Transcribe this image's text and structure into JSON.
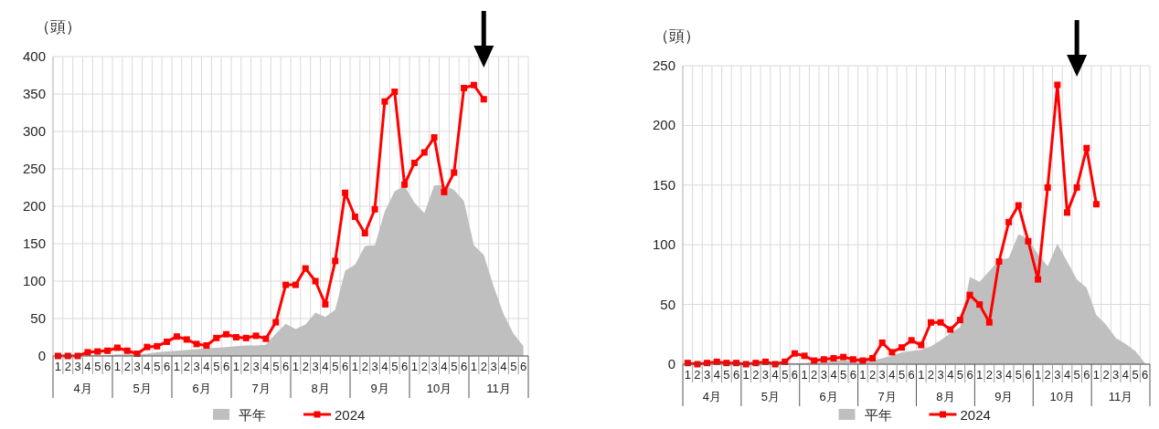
{
  "chart_data": [
    {
      "type": "line",
      "ylabel": "（頭）",
      "ylim": [
        0,
        400
      ],
      "yticks": [
        0,
        50,
        100,
        150,
        200,
        250,
        300,
        350,
        400
      ],
      "grid": true,
      "legend": "bottom",
      "categories": [
        "1",
        "2",
        "3",
        "4",
        "5",
        "6",
        "1",
        "2",
        "3",
        "4",
        "5",
        "6",
        "1",
        "2",
        "3",
        "4",
        "5",
        "6",
        "1",
        "2",
        "3",
        "4",
        "5",
        "6",
        "1",
        "2",
        "3",
        "4",
        "5",
        "6",
        "1",
        "2",
        "3",
        "4",
        "5",
        "6",
        "1",
        "2",
        "3",
        "4",
        "5",
        "6",
        "1",
        "2",
        "3",
        "4",
        "5",
        "6"
      ],
      "annotations": [
        "4月",
        "5月",
        "6月",
        "7月",
        "8月",
        "9月",
        "10月",
        "11月"
      ],
      "series": [
        {
          "name": "平年",
          "type": "area",
          "color": "#bfbfbf",
          "values": [
            0,
            0,
            0,
            1,
            1,
            1,
            2,
            2,
            2,
            3,
            5,
            6,
            7,
            8,
            9,
            10,
            11,
            12,
            13,
            14,
            14,
            15,
            30,
            43,
            36,
            42,
            58,
            52,
            62,
            114,
            122,
            147,
            148,
            193,
            220,
            227,
            205,
            191,
            228,
            228,
            222,
            207,
            148,
            135,
            93,
            56,
            30,
            13
          ]
        },
        {
          "name": "2024",
          "marker": "square",
          "color": "#ff0000",
          "values": [
            0,
            0,
            0,
            5,
            6,
            7,
            11,
            7,
            3,
            12,
            13,
            19,
            26,
            22,
            16,
            14,
            24,
            29,
            25,
            24,
            27,
            23,
            45,
            95,
            95,
            117,
            100,
            69,
            127,
            218,
            186,
            164,
            196,
            340,
            353,
            229,
            258,
            272,
            292,
            219,
            245,
            358,
            362,
            343,
            null,
            null,
            null,
            null
          ]
        }
      ]
    },
    {
      "type": "line",
      "ylabel": "（頭）",
      "ylim": [
        0,
        250
      ],
      "yticks": [
        0,
        50,
        100,
        150,
        200,
        250
      ],
      "grid": true,
      "legend": "bottom",
      "categories": [
        "1",
        "2",
        "3",
        "4",
        "5",
        "6",
        "1",
        "2",
        "3",
        "4",
        "5",
        "6",
        "1",
        "2",
        "3",
        "4",
        "5",
        "6",
        "1",
        "2",
        "3",
        "4",
        "5",
        "6",
        "1",
        "2",
        "3",
        "4",
        "5",
        "6",
        "1",
        "2",
        "3",
        "4",
        "5",
        "6",
        "1",
        "2",
        "3",
        "4",
        "5",
        "6",
        "1",
        "2",
        "3",
        "4",
        "5",
        "6"
      ],
      "annotations": [
        "4月",
        "5月",
        "6月",
        "7月",
        "8月",
        "9月",
        "10月",
        "11月"
      ],
      "series": [
        {
          "name": "平年",
          "type": "area",
          "color": "#bfbfbf",
          "values": [
            0,
            0,
            0,
            0,
            0,
            0,
            0,
            0,
            0,
            0,
            1,
            1,
            1,
            2,
            2,
            3,
            3,
            3,
            3,
            3,
            5,
            7,
            10,
            11,
            12,
            15,
            20,
            26,
            31,
            73,
            69,
            78,
            87,
            89,
            109,
            105,
            92,
            82,
            101,
            86,
            71,
            64,
            41,
            33,
            22,
            17,
            11,
            1
          ]
        },
        {
          "name": "2024",
          "marker": "square",
          "color": "#ff0000",
          "values": [
            1,
            0,
            1,
            2,
            1,
            1,
            0,
            1,
            2,
            0,
            2,
            9,
            7,
            3,
            4,
            5,
            6,
            4,
            3,
            5,
            18,
            10,
            14,
            20,
            16,
            35,
            35,
            29,
            37,
            58,
            50,
            35,
            86,
            119,
            133,
            103,
            71,
            148,
            234,
            127,
            148,
            181,
            134,
            null,
            null,
            null,
            null,
            null
          ]
        }
      ]
    }
  ]
}
